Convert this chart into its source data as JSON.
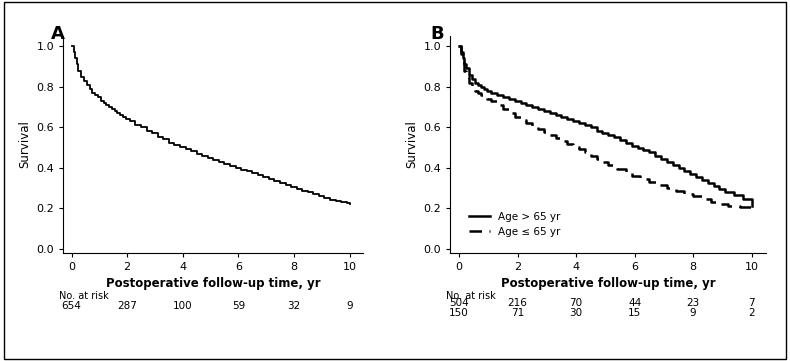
{
  "panel_A_label": "A",
  "panel_B_label": "B",
  "xlabel": "Postoperative follow-up time, yr",
  "ylabel": "Survival",
  "xlim": [
    -0.3,
    10.5
  ],
  "ylim": [
    -0.02,
    1.05
  ],
  "xticks": [
    0,
    2,
    4,
    6,
    8,
    10
  ],
  "yticks": [
    0.0,
    0.2,
    0.4,
    0.6,
    0.8,
    1.0
  ],
  "bg_color": "#ffffff",
  "line_color": "#000000",
  "text_color": "#000000",
  "no_at_risk_label": "No. at risk",
  "panel_A_risk_times": [
    0,
    2,
    4,
    6,
    8,
    10
  ],
  "panel_A_risk_counts": [
    654,
    287,
    100,
    59,
    32,
    9
  ],
  "panel_B_risk_times": [
    0,
    2,
    4,
    6,
    8,
    10
  ],
  "panel_B_risk_counts_old": [
    504,
    216,
    70,
    44,
    23,
    7
  ],
  "panel_B_risk_counts_young": [
    150,
    71,
    30,
    15,
    9,
    2
  ],
  "legend_label_old": "Age > 65 yr",
  "legend_label_young": "Age ≤ 65 yr",
  "panel_A_km_t": [
    0.0,
    0.08,
    0.12,
    0.18,
    0.25,
    0.35,
    0.45,
    0.55,
    0.65,
    0.75,
    0.85,
    0.95,
    1.05,
    1.15,
    1.25,
    1.35,
    1.45,
    1.55,
    1.65,
    1.75,
    1.85,
    1.95,
    2.1,
    2.3,
    2.5,
    2.7,
    2.9,
    3.1,
    3.3,
    3.5,
    3.7,
    3.9,
    4.1,
    4.3,
    4.5,
    4.7,
    4.9,
    5.1,
    5.3,
    5.5,
    5.7,
    5.9,
    6.1,
    6.3,
    6.5,
    6.7,
    6.9,
    7.1,
    7.3,
    7.5,
    7.7,
    7.9,
    8.1,
    8.3,
    8.5,
    8.7,
    8.9,
    9.1,
    9.3,
    9.5,
    9.7,
    9.9,
    10.0
  ],
  "panel_A_km_s": [
    1.0,
    0.97,
    0.94,
    0.91,
    0.88,
    0.85,
    0.83,
    0.81,
    0.79,
    0.77,
    0.76,
    0.75,
    0.73,
    0.72,
    0.71,
    0.7,
    0.69,
    0.68,
    0.67,
    0.66,
    0.65,
    0.64,
    0.63,
    0.61,
    0.6,
    0.58,
    0.57,
    0.55,
    0.54,
    0.52,
    0.51,
    0.5,
    0.49,
    0.48,
    0.47,
    0.46,
    0.45,
    0.44,
    0.43,
    0.42,
    0.41,
    0.4,
    0.39,
    0.385,
    0.375,
    0.365,
    0.355,
    0.345,
    0.335,
    0.325,
    0.315,
    0.305,
    0.295,
    0.285,
    0.278,
    0.268,
    0.258,
    0.248,
    0.242,
    0.236,
    0.23,
    0.224,
    0.22
  ],
  "panel_B_old_t": [
    0.0,
    0.08,
    0.12,
    0.18,
    0.25,
    0.35,
    0.45,
    0.55,
    0.65,
    0.75,
    0.85,
    0.95,
    1.1,
    1.3,
    1.5,
    1.7,
    1.9,
    2.1,
    2.3,
    2.5,
    2.7,
    2.9,
    3.1,
    3.3,
    3.5,
    3.7,
    3.9,
    4.1,
    4.3,
    4.5,
    4.7,
    4.9,
    5.1,
    5.3,
    5.5,
    5.7,
    5.9,
    6.1,
    6.3,
    6.5,
    6.7,
    6.9,
    7.1,
    7.3,
    7.5,
    7.7,
    7.9,
    8.1,
    8.3,
    8.5,
    8.7,
    8.9,
    9.1,
    9.4,
    9.7,
    10.0
  ],
  "panel_B_old_s": [
    1.0,
    0.97,
    0.94,
    0.91,
    0.89,
    0.86,
    0.84,
    0.82,
    0.81,
    0.8,
    0.79,
    0.78,
    0.77,
    0.76,
    0.75,
    0.74,
    0.73,
    0.72,
    0.71,
    0.7,
    0.69,
    0.68,
    0.67,
    0.66,
    0.65,
    0.64,
    0.63,
    0.62,
    0.61,
    0.6,
    0.58,
    0.57,
    0.56,
    0.55,
    0.535,
    0.52,
    0.505,
    0.495,
    0.485,
    0.475,
    0.46,
    0.445,
    0.43,
    0.415,
    0.4,
    0.385,
    0.37,
    0.355,
    0.34,
    0.325,
    0.31,
    0.295,
    0.28,
    0.265,
    0.245,
    0.21
  ],
  "panel_B_young_t": [
    0.0,
    0.07,
    0.12,
    0.18,
    0.25,
    0.35,
    0.45,
    0.55,
    0.65,
    0.75,
    0.85,
    0.95,
    1.1,
    1.3,
    1.5,
    1.7,
    1.9,
    2.1,
    2.3,
    2.5,
    2.7,
    2.9,
    3.1,
    3.3,
    3.5,
    3.7,
    3.9,
    4.1,
    4.3,
    4.5,
    4.7,
    4.9,
    5.1,
    5.4,
    5.7,
    5.9,
    6.2,
    6.5,
    6.8,
    7.1,
    7.4,
    7.7,
    8.0,
    8.3,
    8.6,
    8.9,
    9.2,
    9.6,
    10.0
  ],
  "panel_B_young_s": [
    1.0,
    0.96,
    0.92,
    0.88,
    0.85,
    0.82,
    0.8,
    0.78,
    0.77,
    0.76,
    0.75,
    0.74,
    0.73,
    0.71,
    0.69,
    0.67,
    0.65,
    0.635,
    0.62,
    0.605,
    0.59,
    0.575,
    0.56,
    0.545,
    0.53,
    0.515,
    0.5,
    0.49,
    0.475,
    0.46,
    0.445,
    0.43,
    0.415,
    0.395,
    0.375,
    0.36,
    0.345,
    0.33,
    0.315,
    0.3,
    0.285,
    0.27,
    0.258,
    0.245,
    0.232,
    0.22,
    0.21,
    0.205,
    0.2
  ]
}
